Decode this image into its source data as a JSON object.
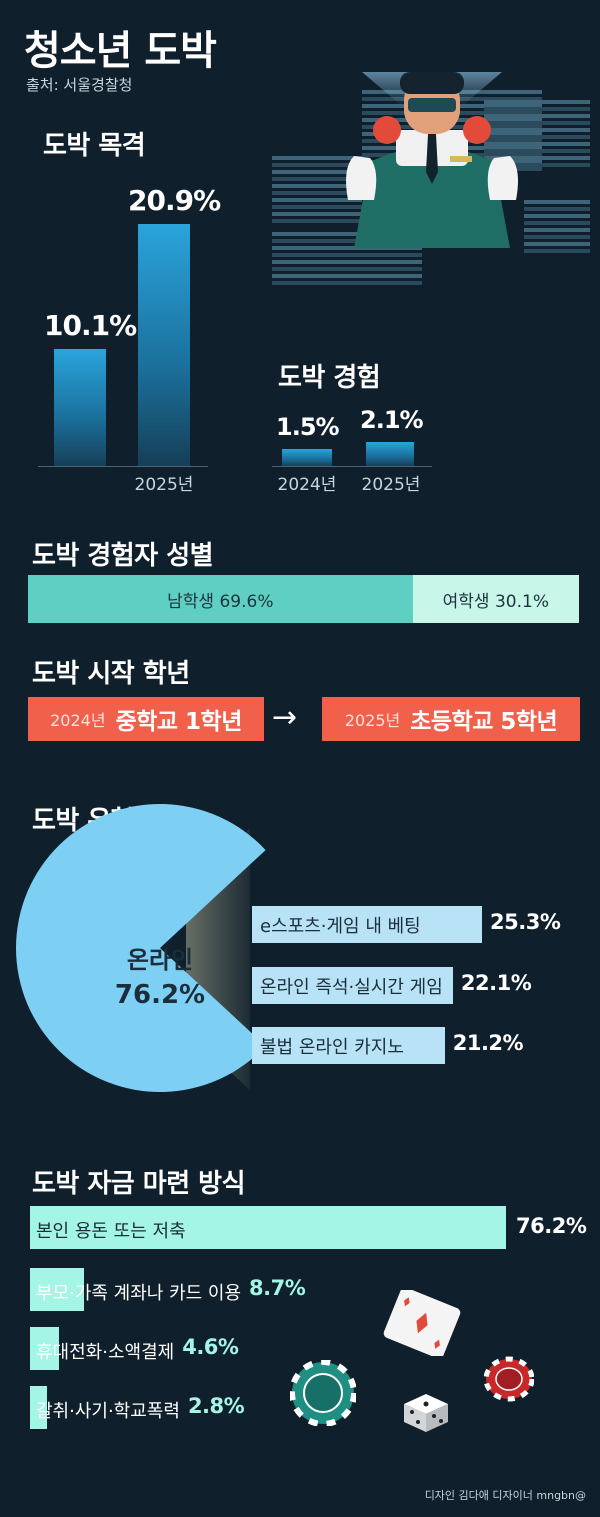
{
  "title": "청소년 도박",
  "source": "출처: 서울경찰청",
  "credit": "디자인 김다애 디자이너 mngbn@",
  "colors": {
    "background": "#0f1f2b",
    "bar_blue": "#2aa4dc",
    "male": "#5ecfc0",
    "female": "#c8f6e8",
    "grade": "#f0604b",
    "online": "#7ecff4",
    "online_bar": "#b8e2f5",
    "fund": "#a4f5e6"
  },
  "icons": [
    "dealer-illustration",
    "playing-card-icon",
    "casino-chip-icon",
    "dice-icon"
  ],
  "chart_data": [
    {
      "type": "bar",
      "title": "도박 목격",
      "categories": [
        "",
        "2025년"
      ],
      "values": [
        10.1,
        20.9
      ],
      "labels": [
        "10.1%",
        "20.9%"
      ],
      "ylim": [
        0,
        22
      ]
    },
    {
      "type": "bar",
      "title": "도박 경험",
      "categories": [
        "2024년",
        "2025년"
      ],
      "values": [
        1.5,
        2.1
      ],
      "labels": [
        "1.5%",
        "2.1%"
      ],
      "ylim": [
        0,
        22
      ]
    },
    {
      "type": "bar",
      "title": "도박 경험자 성별",
      "categories": [
        "남학생",
        "여학생"
      ],
      "values": [
        69.6,
        30.1
      ],
      "labels": [
        "남학생 69.6%",
        "여학생 30.1%"
      ]
    },
    {
      "type": "table",
      "title": "도박 시작 학년",
      "rows": [
        {
          "year": "2024년",
          "grade": "중학교 1학년"
        },
        {
          "year": "2025년",
          "grade": "초등학교 5학년"
        }
      ],
      "arrow": "→"
    },
    {
      "type": "pie",
      "title": "도박 유형",
      "categories": [
        "온라인"
      ],
      "values": [
        76.2
      ],
      "center_label": "온라인",
      "center_value": "76.2%",
      "breakdown": {
        "type": "bar",
        "categories": [
          "e스포츠·게임 내 베팅",
          "온라인 즉석·실시간 게임",
          "불법 온라인 카지노"
        ],
        "values": [
          25.3,
          22.1,
          21.2
        ],
        "labels": [
          "25.3%",
          "22.1%",
          "21.2%"
        ]
      }
    },
    {
      "type": "bar",
      "title": "도박 자금 마련 방식",
      "categories": [
        "본인 용돈 또는 저축",
        "부모·가족 계좌나 카드 이용",
        "휴대전화·소액결제",
        "갈취·사기·학교폭력"
      ],
      "values": [
        76.2,
        8.7,
        4.6,
        2.8
      ],
      "labels": [
        "76.2%",
        "8.7%",
        "4.6%",
        "2.8%"
      ]
    }
  ]
}
